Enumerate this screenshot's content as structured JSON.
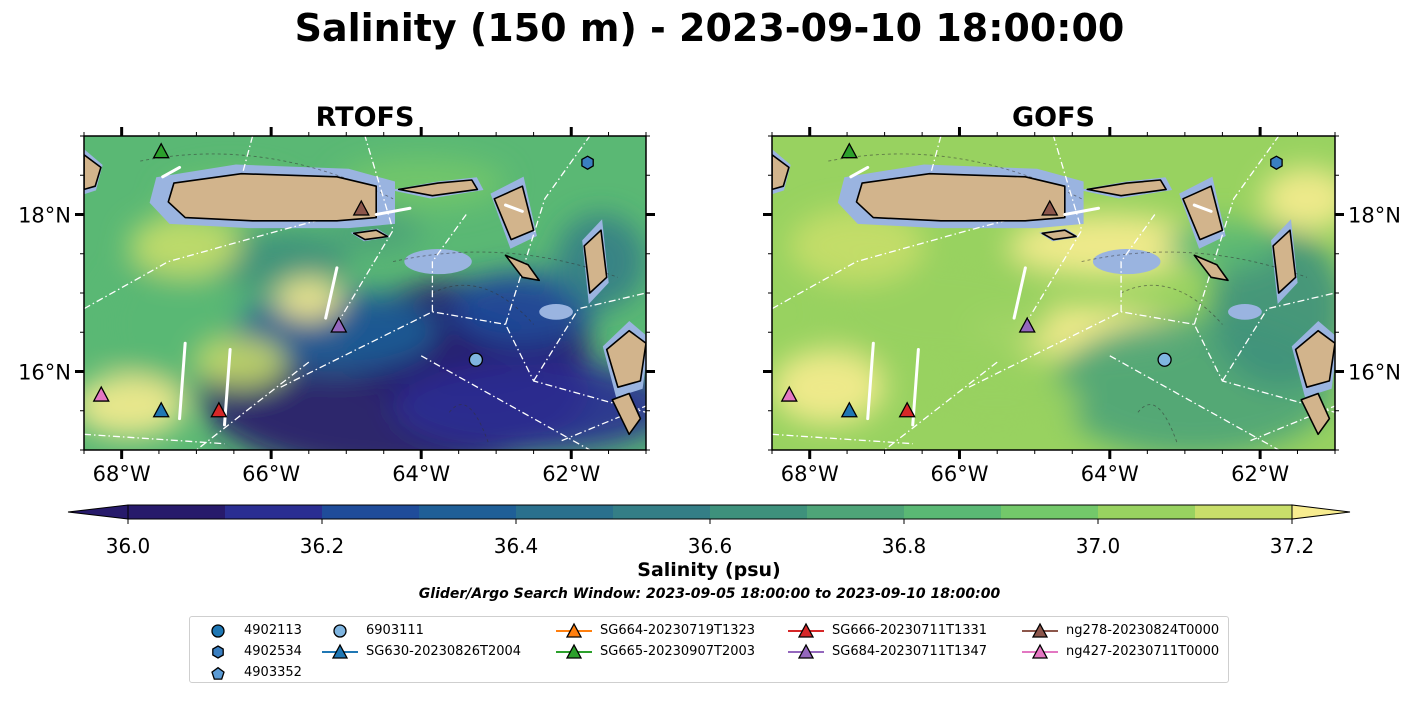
{
  "title": "Salinity (150 m) - 2023-09-10 18:00:00",
  "search_window": "Glider/Argo Search Window: 2023-09-05 18:00:00 to 2023-09-10 18:00:00",
  "colors": {
    "land": "#d2b48c",
    "shelf": "#9ab4e0",
    "colormap": [
      "#271a6b",
      "#2a2e92",
      "#1f4c9a",
      "#1f5f97",
      "#2a708d",
      "#347e86",
      "#3e917c",
      "#4ea478",
      "#5ab874",
      "#73c86a",
      "#98d260",
      "#c8de6a",
      "#f7ec8f"
    ]
  },
  "chart_data": [
    {
      "type": "heatmap",
      "subtitle": "RTOFS",
      "xlim": [
        -68.5,
        -61.0
      ],
      "ylim": [
        15.0,
        19.0
      ],
      "x_ticks": [
        "68°W",
        "66°W",
        "64°W",
        "62°W"
      ],
      "y_ticks": [
        "18°N",
        "16°N"
      ],
      "y_tick_side": "left",
      "markers": [
        {
          "name": "SG665-20230907T2003",
          "lon": -67.47,
          "lat": 18.8,
          "shape": "triangle",
          "color": "#2ca02c"
        },
        {
          "name": "ng278-20230824T0000",
          "lon": -64.8,
          "lat": 18.07,
          "shape": "triangle",
          "color": "#8c564b"
        },
        {
          "name": "4902534",
          "lon": -61.78,
          "lat": 18.66,
          "shape": "hexagon",
          "color": "#3a7fc1"
        },
        {
          "name": "SG684-20230711T1347",
          "lon": -65.1,
          "lat": 16.58,
          "shape": "triangle",
          "color": "#9467bd"
        },
        {
          "name": "6903111",
          "lon": -63.27,
          "lat": 16.15,
          "shape": "circle",
          "color": "#7fb5e0"
        },
        {
          "name": "ng427-20230711T0000",
          "lon": -68.27,
          "lat": 15.7,
          "shape": "triangle",
          "color": "#e377c2"
        },
        {
          "name": "SG630-20230826T2004",
          "lon": -67.47,
          "lat": 15.5,
          "shape": "triangle",
          "color": "#1f77b4"
        },
        {
          "name": "SG666-20230711T1331",
          "lon": -66.7,
          "lat": 15.5,
          "shape": "triangle",
          "color": "#d62728"
        }
      ]
    },
    {
      "type": "heatmap",
      "subtitle": "GOFS",
      "xlim": [
        -68.5,
        -61.0
      ],
      "ylim": [
        15.0,
        19.0
      ],
      "x_ticks": [
        "68°W",
        "66°W",
        "64°W",
        "62°W"
      ],
      "y_ticks": [
        "18°N",
        "16°N"
      ],
      "y_tick_side": "right",
      "markers": [
        {
          "name": "SG665-20230907T2003",
          "lon": -67.47,
          "lat": 18.8,
          "shape": "triangle",
          "color": "#2ca02c"
        },
        {
          "name": "ng278-20230824T0000",
          "lon": -64.8,
          "lat": 18.07,
          "shape": "triangle",
          "color": "#8c564b"
        },
        {
          "name": "4902534",
          "lon": -61.78,
          "lat": 18.66,
          "shape": "hexagon",
          "color": "#3a7fc1"
        },
        {
          "name": "SG684-20230711T1347",
          "lon": -65.1,
          "lat": 16.58,
          "shape": "triangle",
          "color": "#9467bd"
        },
        {
          "name": "6903111",
          "lon": -63.27,
          "lat": 16.15,
          "shape": "circle",
          "color": "#7fb5e0"
        },
        {
          "name": "ng427-20230711T0000",
          "lon": -68.27,
          "lat": 15.7,
          "shape": "triangle",
          "color": "#e377c2"
        },
        {
          "name": "SG630-20230826T2004",
          "lon": -67.47,
          "lat": 15.5,
          "shape": "triangle",
          "color": "#1f77b4"
        },
        {
          "name": "SG666-20230711T1331",
          "lon": -66.7,
          "lat": 15.5,
          "shape": "triangle",
          "color": "#d62728"
        }
      ]
    }
  ],
  "colorbar": {
    "label": "Salinity (psu)",
    "min": 36.0,
    "max": 37.2,
    "ticks": [
      "36.0",
      "36.2",
      "36.4",
      "36.6",
      "36.8",
      "37.0",
      "37.2"
    ],
    "extend": "both"
  },
  "legend": {
    "columns": [
      [
        {
          "label": "4902113",
          "shape": "circle",
          "color": "#1f77b4",
          "line": false
        },
        {
          "label": "4902534",
          "shape": "hexagon",
          "color": "#3a7fc1",
          "line": false
        },
        {
          "label": "4903352",
          "shape": "pentagon",
          "color": "#5b9bd5",
          "line": false
        }
      ],
      [
        {
          "label": "6903111",
          "shape": "circle",
          "color": "#7fb5e0",
          "line": false
        },
        {
          "label": "SG630-20230826T2004",
          "shape": "triangle",
          "color": "#1f77b4",
          "line": true
        }
      ],
      [
        {
          "label": "SG664-20230719T1323",
          "shape": "triangle",
          "color": "#ff7f0e",
          "line": true
        },
        {
          "label": "SG665-20230907T2003",
          "shape": "triangle",
          "color": "#2ca02c",
          "line": true
        }
      ],
      [
        {
          "label": "SG666-20230711T1331",
          "shape": "triangle",
          "color": "#d62728",
          "line": true
        },
        {
          "label": "SG684-20230711T1347",
          "shape": "triangle",
          "color": "#9467bd",
          "line": true
        }
      ],
      [
        {
          "label": "ng278-20230824T0000",
          "shape": "triangle",
          "color": "#8c564b",
          "line": true
        },
        {
          "label": "ng427-20230711T0000",
          "shape": "triangle",
          "color": "#e377c2",
          "line": true
        }
      ]
    ]
  }
}
